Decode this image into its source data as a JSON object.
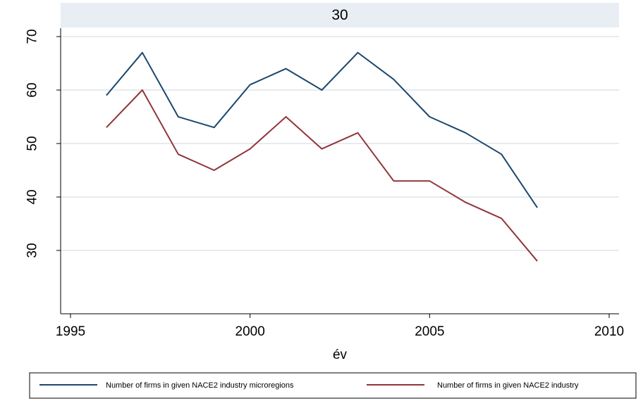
{
  "chart_data": {
    "type": "line",
    "panel_title": "30",
    "xlabel": "év",
    "ylabel": "",
    "x": [
      1996,
      1997,
      1998,
      1999,
      2000,
      2001,
      2002,
      2003,
      2004,
      2005,
      2006,
      2007,
      2008
    ],
    "xlim": [
      1995,
      2010
    ],
    "ylim": [
      20,
      70
    ],
    "xticks": [
      1995,
      2000,
      2005,
      2010
    ],
    "yticks": [
      30,
      40,
      50,
      60,
      70
    ],
    "grid": "horizontal",
    "legend_position": "bottom",
    "series": [
      {
        "name": "Number of firms in given NACE2 industry microregions",
        "color": "#1a476f",
        "values": [
          59,
          67,
          55,
          53,
          61,
          64,
          60,
          67,
          62,
          55,
          52,
          48,
          38
        ]
      },
      {
        "name": "Number of firms in given NACE2 industry",
        "color": "#90353b",
        "values": [
          53,
          60,
          48,
          45,
          49,
          55,
          49,
          52,
          43,
          43,
          39,
          36,
          28
        ]
      }
    ],
    "colors": {
      "panel_header": "#e8eef4",
      "grid": "#e6ebef",
      "axis": "#000000"
    }
  }
}
